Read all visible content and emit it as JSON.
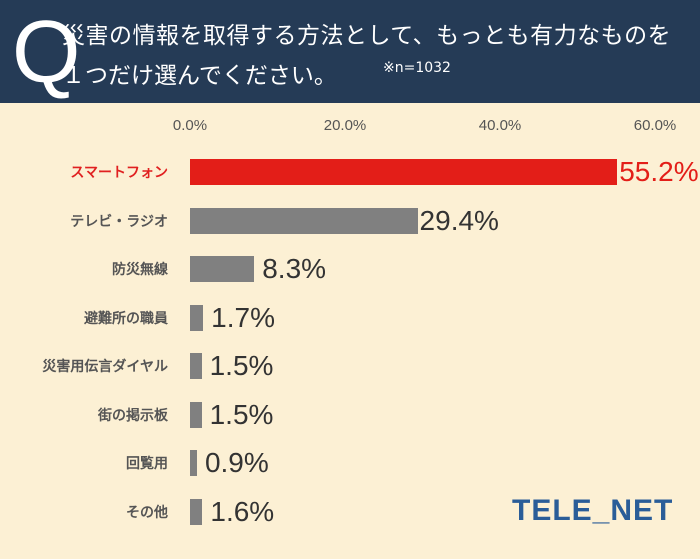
{
  "header": {
    "q_mark": "Q",
    "line1": "災害の情報を取得する方法として、もっとも有力なものを",
    "line2": "１つだけ選んでください。",
    "note": "※n=1032"
  },
  "axis": {
    "ticks": [
      "0.0%",
      "20.0%",
      "40.0%",
      "60.0%"
    ]
  },
  "rows": [
    {
      "label": "スマートフォン",
      "value": 55.2,
      "value_label": "55.2%"
    },
    {
      "label": "テレビ・ラジオ",
      "value": 29.4,
      "value_label": "29.4%"
    },
    {
      "label": "防災無線",
      "value": 8.3,
      "value_label": "8.3%"
    },
    {
      "label": "避難所の職員",
      "value": 1.7,
      "value_label": "1.7%"
    },
    {
      "label": "災害用伝言ダイヤル",
      "value": 1.5,
      "value_label": "1.5%"
    },
    {
      "label": "街の掲示板",
      "value": 1.5,
      "value_label": "1.5%"
    },
    {
      "label": "回覧用",
      "value": 0.9,
      "value_label": "0.9%"
    },
    {
      "label": "その他",
      "value": 1.6,
      "value_label": "1.6%"
    }
  ],
  "logo": "TELE_NET",
  "colors": {
    "highlight": "#e31e18",
    "bar": "#808080",
    "header_bg": "#253b56",
    "background": "#fcf0d4",
    "logo": "#2a5d98"
  },
  "chart_data": {
    "type": "bar",
    "orientation": "horizontal",
    "title": "災害の情報を取得する方法として、もっとも有力なものを１つだけ選んでください。",
    "subtitle": "※n=1032",
    "categories": [
      "スマートフォン",
      "テレビ・ラジオ",
      "防災無線",
      "避難所の職員",
      "災害用伝言ダイヤル",
      "街の掲示板",
      "回覧用",
      "その他"
    ],
    "values": [
      55.2,
      29.4,
      8.3,
      1.7,
      1.5,
      1.5,
      0.9,
      1.6
    ],
    "xlabel": "",
    "ylabel": "",
    "xlim": [
      0,
      60
    ],
    "xticks": [
      "0.0%",
      "20.0%",
      "40.0%",
      "60.0%"
    ],
    "grid": false,
    "legend": null
  }
}
